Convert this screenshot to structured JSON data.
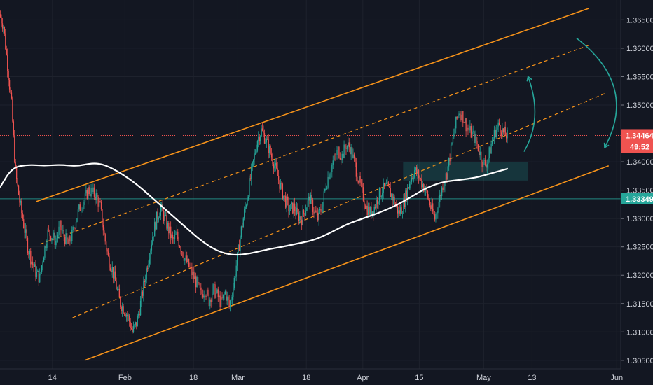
{
  "chart_data": {
    "type": "candlestick",
    "symbol_timeframe_note": "",
    "y_axis": {
      "min": 1.3035,
      "max": 1.3685,
      "ticks": [
        "1.36500",
        "1.36000",
        "1.35500",
        "1.35000",
        "1.34000",
        "1.33500",
        "1.33000",
        "1.32500",
        "1.32000",
        "1.31500",
        "1.31000",
        "1.30500"
      ],
      "tick_values": [
        1.365,
        1.36,
        1.355,
        1.35,
        1.34,
        1.335,
        1.33,
        1.325,
        1.32,
        1.315,
        1.31,
        1.305
      ]
    },
    "x_axis": {
      "start_date": "2019-01-01",
      "end_date": "2019-06-04",
      "tick_labels": [
        "14",
        "Feb",
        "18",
        "Mar",
        "18",
        "Apr",
        "15",
        "May",
        "13",
        "Jun"
      ],
      "tick_dates": [
        "2019-01-14",
        "2019-02-01",
        "2019-02-18",
        "2019-03-01",
        "2019-03-18",
        "2019-04-01",
        "2019-04-15",
        "2019-05-01",
        "2019-05-13",
        "2019-06-03"
      ]
    },
    "last_price": {
      "value": 1.34464,
      "label": "1.34464",
      "countdown": "49:52",
      "color": "#ef5350"
    },
    "support_level": {
      "value": 1.33349,
      "label": "1.33349",
      "color": "#26a69a"
    },
    "colors": {
      "up": "#26a69a",
      "down": "#ef5350",
      "channel": "#f7931a",
      "ma": "#ffffff",
      "arrow": "#26a69a"
    },
    "price_path": [
      [
        "2019-01-01",
        1.366
      ],
      [
        "2019-01-02",
        1.364
      ],
      [
        "2019-01-03",
        1.357
      ],
      [
        "2019-01-04",
        1.35
      ],
      [
        "2019-01-05",
        1.338
      ],
      [
        "2019-01-06",
        1.333
      ],
      [
        "2019-01-07",
        1.329
      ],
      [
        "2019-01-08",
        1.325
      ],
      [
        "2019-01-09",
        1.3225
      ],
      [
        "2019-01-10",
        1.3205
      ],
      [
        "2019-01-11",
        1.3195
      ],
      [
        "2019-01-12",
        1.324
      ],
      [
        "2019-01-13",
        1.3275
      ],
      [
        "2019-01-14",
        1.327
      ],
      [
        "2019-01-15",
        1.326
      ],
      [
        "2019-01-16",
        1.3285
      ],
      [
        "2019-01-17",
        1.327
      ],
      [
        "2019-01-18",
        1.3255
      ],
      [
        "2019-01-19",
        1.327
      ],
      [
        "2019-01-20",
        1.33
      ],
      [
        "2019-01-21",
        1.332
      ],
      [
        "2019-01-22",
        1.333
      ],
      [
        "2019-01-23",
        1.335
      ],
      [
        "2019-01-24",
        1.3345
      ],
      [
        "2019-01-25",
        1.334
      ],
      [
        "2019-01-26",
        1.332
      ],
      [
        "2019-01-27",
        1.327
      ],
      [
        "2019-01-28",
        1.323
      ],
      [
        "2019-01-29",
        1.321
      ],
      [
        "2019-01-30",
        1.318
      ],
      [
        "2019-01-31",
        1.315
      ],
      [
        "2019-02-01",
        1.314
      ],
      [
        "2019-02-02",
        1.3125
      ],
      [
        "2019-02-03",
        1.31
      ],
      [
        "2019-02-04",
        1.3115
      ],
      [
        "2019-02-05",
        1.315
      ],
      [
        "2019-02-06",
        1.319
      ],
      [
        "2019-02-07",
        1.323
      ],
      [
        "2019-02-08",
        1.327
      ],
      [
        "2019-02-09",
        1.33
      ],
      [
        "2019-02-10",
        1.332
      ],
      [
        "2019-02-11",
        1.33
      ],
      [
        "2019-02-12",
        1.328
      ],
      [
        "2019-02-13",
        1.326
      ],
      [
        "2019-02-14",
        1.327
      ],
      [
        "2019-02-15",
        1.325
      ],
      [
        "2019-02-16",
        1.323
      ],
      [
        "2019-02-17",
        1.3215
      ],
      [
        "2019-02-18",
        1.32
      ],
      [
        "2019-02-19",
        1.3185
      ],
      [
        "2019-02-20",
        1.3165
      ],
      [
        "2019-02-21",
        1.3175
      ],
      [
        "2019-02-22",
        1.3155
      ],
      [
        "2019-02-23",
        1.3175
      ],
      [
        "2019-02-24",
        1.3165
      ],
      [
        "2019-02-25",
        1.315
      ],
      [
        "2019-02-26",
        1.317
      ],
      [
        "2019-02-27",
        1.3145
      ],
      [
        "2019-02-28",
        1.318
      ],
      [
        "2019-03-01",
        1.323
      ],
      [
        "2019-03-02",
        1.328
      ],
      [
        "2019-03-03",
        1.332
      ],
      [
        "2019-03-04",
        1.336
      ],
      [
        "2019-03-05",
        1.34
      ],
      [
        "2019-03-06",
        1.344
      ],
      [
        "2019-03-07",
        1.3455
      ],
      [
        "2019-03-08",
        1.344
      ],
      [
        "2019-03-09",
        1.342
      ],
      [
        "2019-03-10",
        1.34
      ],
      [
        "2019-03-11",
        1.3375
      ],
      [
        "2019-03-12",
        1.335
      ],
      [
        "2019-03-13",
        1.333
      ],
      [
        "2019-03-14",
        1.3315
      ],
      [
        "2019-03-15",
        1.332
      ],
      [
        "2019-03-16",
        1.3305
      ],
      [
        "2019-03-17",
        1.33
      ],
      [
        "2019-03-18",
        1.332
      ],
      [
        "2019-03-19",
        1.3335
      ],
      [
        "2019-03-20",
        1.3315
      ],
      [
        "2019-03-21",
        1.33
      ],
      [
        "2019-03-22",
        1.332
      ],
      [
        "2019-03-23",
        1.336
      ],
      [
        "2019-03-24",
        1.3385
      ],
      [
        "2019-03-25",
        1.3405
      ],
      [
        "2019-03-26",
        1.342
      ],
      [
        "2019-03-27",
        1.341
      ],
      [
        "2019-03-28",
        1.343
      ],
      [
        "2019-03-29",
        1.3425
      ],
      [
        "2019-03-30",
        1.34
      ],
      [
        "2019-03-31",
        1.337
      ],
      [
        "2019-04-01",
        1.3345
      ],
      [
        "2019-04-02",
        1.332
      ],
      [
        "2019-04-03",
        1.331
      ],
      [
        "2019-04-04",
        1.332
      ],
      [
        "2019-04-05",
        1.334
      ],
      [
        "2019-04-06",
        1.335
      ],
      [
        "2019-04-07",
        1.3355
      ],
      [
        "2019-04-08",
        1.3345
      ],
      [
        "2019-04-09",
        1.333
      ],
      [
        "2019-04-10",
        1.331
      ],
      [
        "2019-04-11",
        1.332
      ],
      [
        "2019-04-12",
        1.3345
      ],
      [
        "2019-04-13",
        1.337
      ],
      [
        "2019-04-14",
        1.3385
      ],
      [
        "2019-04-15",
        1.3375
      ],
      [
        "2019-04-16",
        1.336
      ],
      [
        "2019-04-17",
        1.3345
      ],
      [
        "2019-04-18",
        1.332
      ],
      [
        "2019-04-19",
        1.33
      ],
      [
        "2019-04-20",
        1.333
      ],
      [
        "2019-04-21",
        1.336
      ],
      [
        "2019-04-22",
        1.338
      ],
      [
        "2019-04-23",
        1.342
      ],
      [
        "2019-04-24",
        1.346
      ],
      [
        "2019-04-25",
        1.349
      ],
      [
        "2019-04-26",
        1.348
      ],
      [
        "2019-04-27",
        1.346
      ],
      [
        "2019-04-28",
        1.345
      ],
      [
        "2019-04-29",
        1.344
      ],
      [
        "2019-04-30",
        1.342
      ],
      [
        "2019-05-01",
        1.3395
      ],
      [
        "2019-05-02",
        1.34
      ],
      [
        "2019-05-03",
        1.343
      ],
      [
        "2019-05-04",
        1.3455
      ],
      [
        "2019-05-05",
        1.3465
      ],
      [
        "2019-05-06",
        1.345
      ],
      [
        "2019-05-07",
        1.3446
      ]
    ],
    "moving_average": [
      [
        "2019-01-01",
        1.3355
      ],
      [
        "2019-01-04",
        1.339
      ],
      [
        "2019-01-08",
        1.3395
      ],
      [
        "2019-01-12",
        1.3393
      ],
      [
        "2019-01-16",
        1.3395
      ],
      [
        "2019-01-20",
        1.3392
      ],
      [
        "2019-01-24",
        1.3398
      ],
      [
        "2019-01-27",
        1.3395
      ],
      [
        "2019-01-31",
        1.338
      ],
      [
        "2019-02-04",
        1.336
      ],
      [
        "2019-02-08",
        1.3335
      ],
      [
        "2019-02-12",
        1.331
      ],
      [
        "2019-02-16",
        1.3285
      ],
      [
        "2019-02-20",
        1.326
      ],
      [
        "2019-02-24",
        1.3242
      ],
      [
        "2019-02-28",
        1.3235
      ],
      [
        "2019-03-04",
        1.3238
      ],
      [
        "2019-03-08",
        1.3245
      ],
      [
        "2019-03-12",
        1.325
      ],
      [
        "2019-03-16",
        1.3256
      ],
      [
        "2019-03-20",
        1.3262
      ],
      [
        "2019-03-24",
        1.3275
      ],
      [
        "2019-03-28",
        1.329
      ],
      [
        "2019-04-01",
        1.33
      ],
      [
        "2019-04-05",
        1.331
      ],
      [
        "2019-04-09",
        1.3322
      ],
      [
        "2019-04-13",
        1.3338
      ],
      [
        "2019-04-17",
        1.3355
      ],
      [
        "2019-04-21",
        1.3365
      ],
      [
        "2019-04-25",
        1.3368
      ],
      [
        "2019-04-29",
        1.3372
      ],
      [
        "2019-05-03",
        1.338
      ],
      [
        "2019-05-07",
        1.3388
      ]
    ],
    "channel_lines": [
      {
        "style": "solid",
        "from": [
          "2019-01-10",
          1.333
        ],
        "to": [
          "2019-05-27",
          1.367
        ]
      },
      {
        "style": "dashed",
        "from": [
          "2019-01-11",
          1.3255
        ],
        "to": [
          "2019-05-27",
          1.3605
        ]
      },
      {
        "style": "dashed",
        "from": [
          "2019-01-19",
          1.3125
        ],
        "to": [
          "2019-05-31",
          1.352
        ]
      },
      {
        "style": "solid",
        "from": [
          "2019-01-22",
          1.305
        ],
        "to": [
          "2019-06-01",
          1.3393
        ]
      }
    ],
    "support_zone": {
      "from_date": "2019-04-11",
      "to_date": "2019-05-12",
      "low": 1.3367,
      "high": 1.34
    },
    "arrows": [
      {
        "kind": "up-curve",
        "from": [
          "2019-05-11",
          1.3418
        ],
        "to": [
          "2019-05-12",
          1.355
        ]
      },
      {
        "kind": "down-curve",
        "from": [
          "2019-05-24",
          1.3618
        ],
        "to": [
          "2019-05-31",
          1.3425
        ]
      }
    ]
  }
}
